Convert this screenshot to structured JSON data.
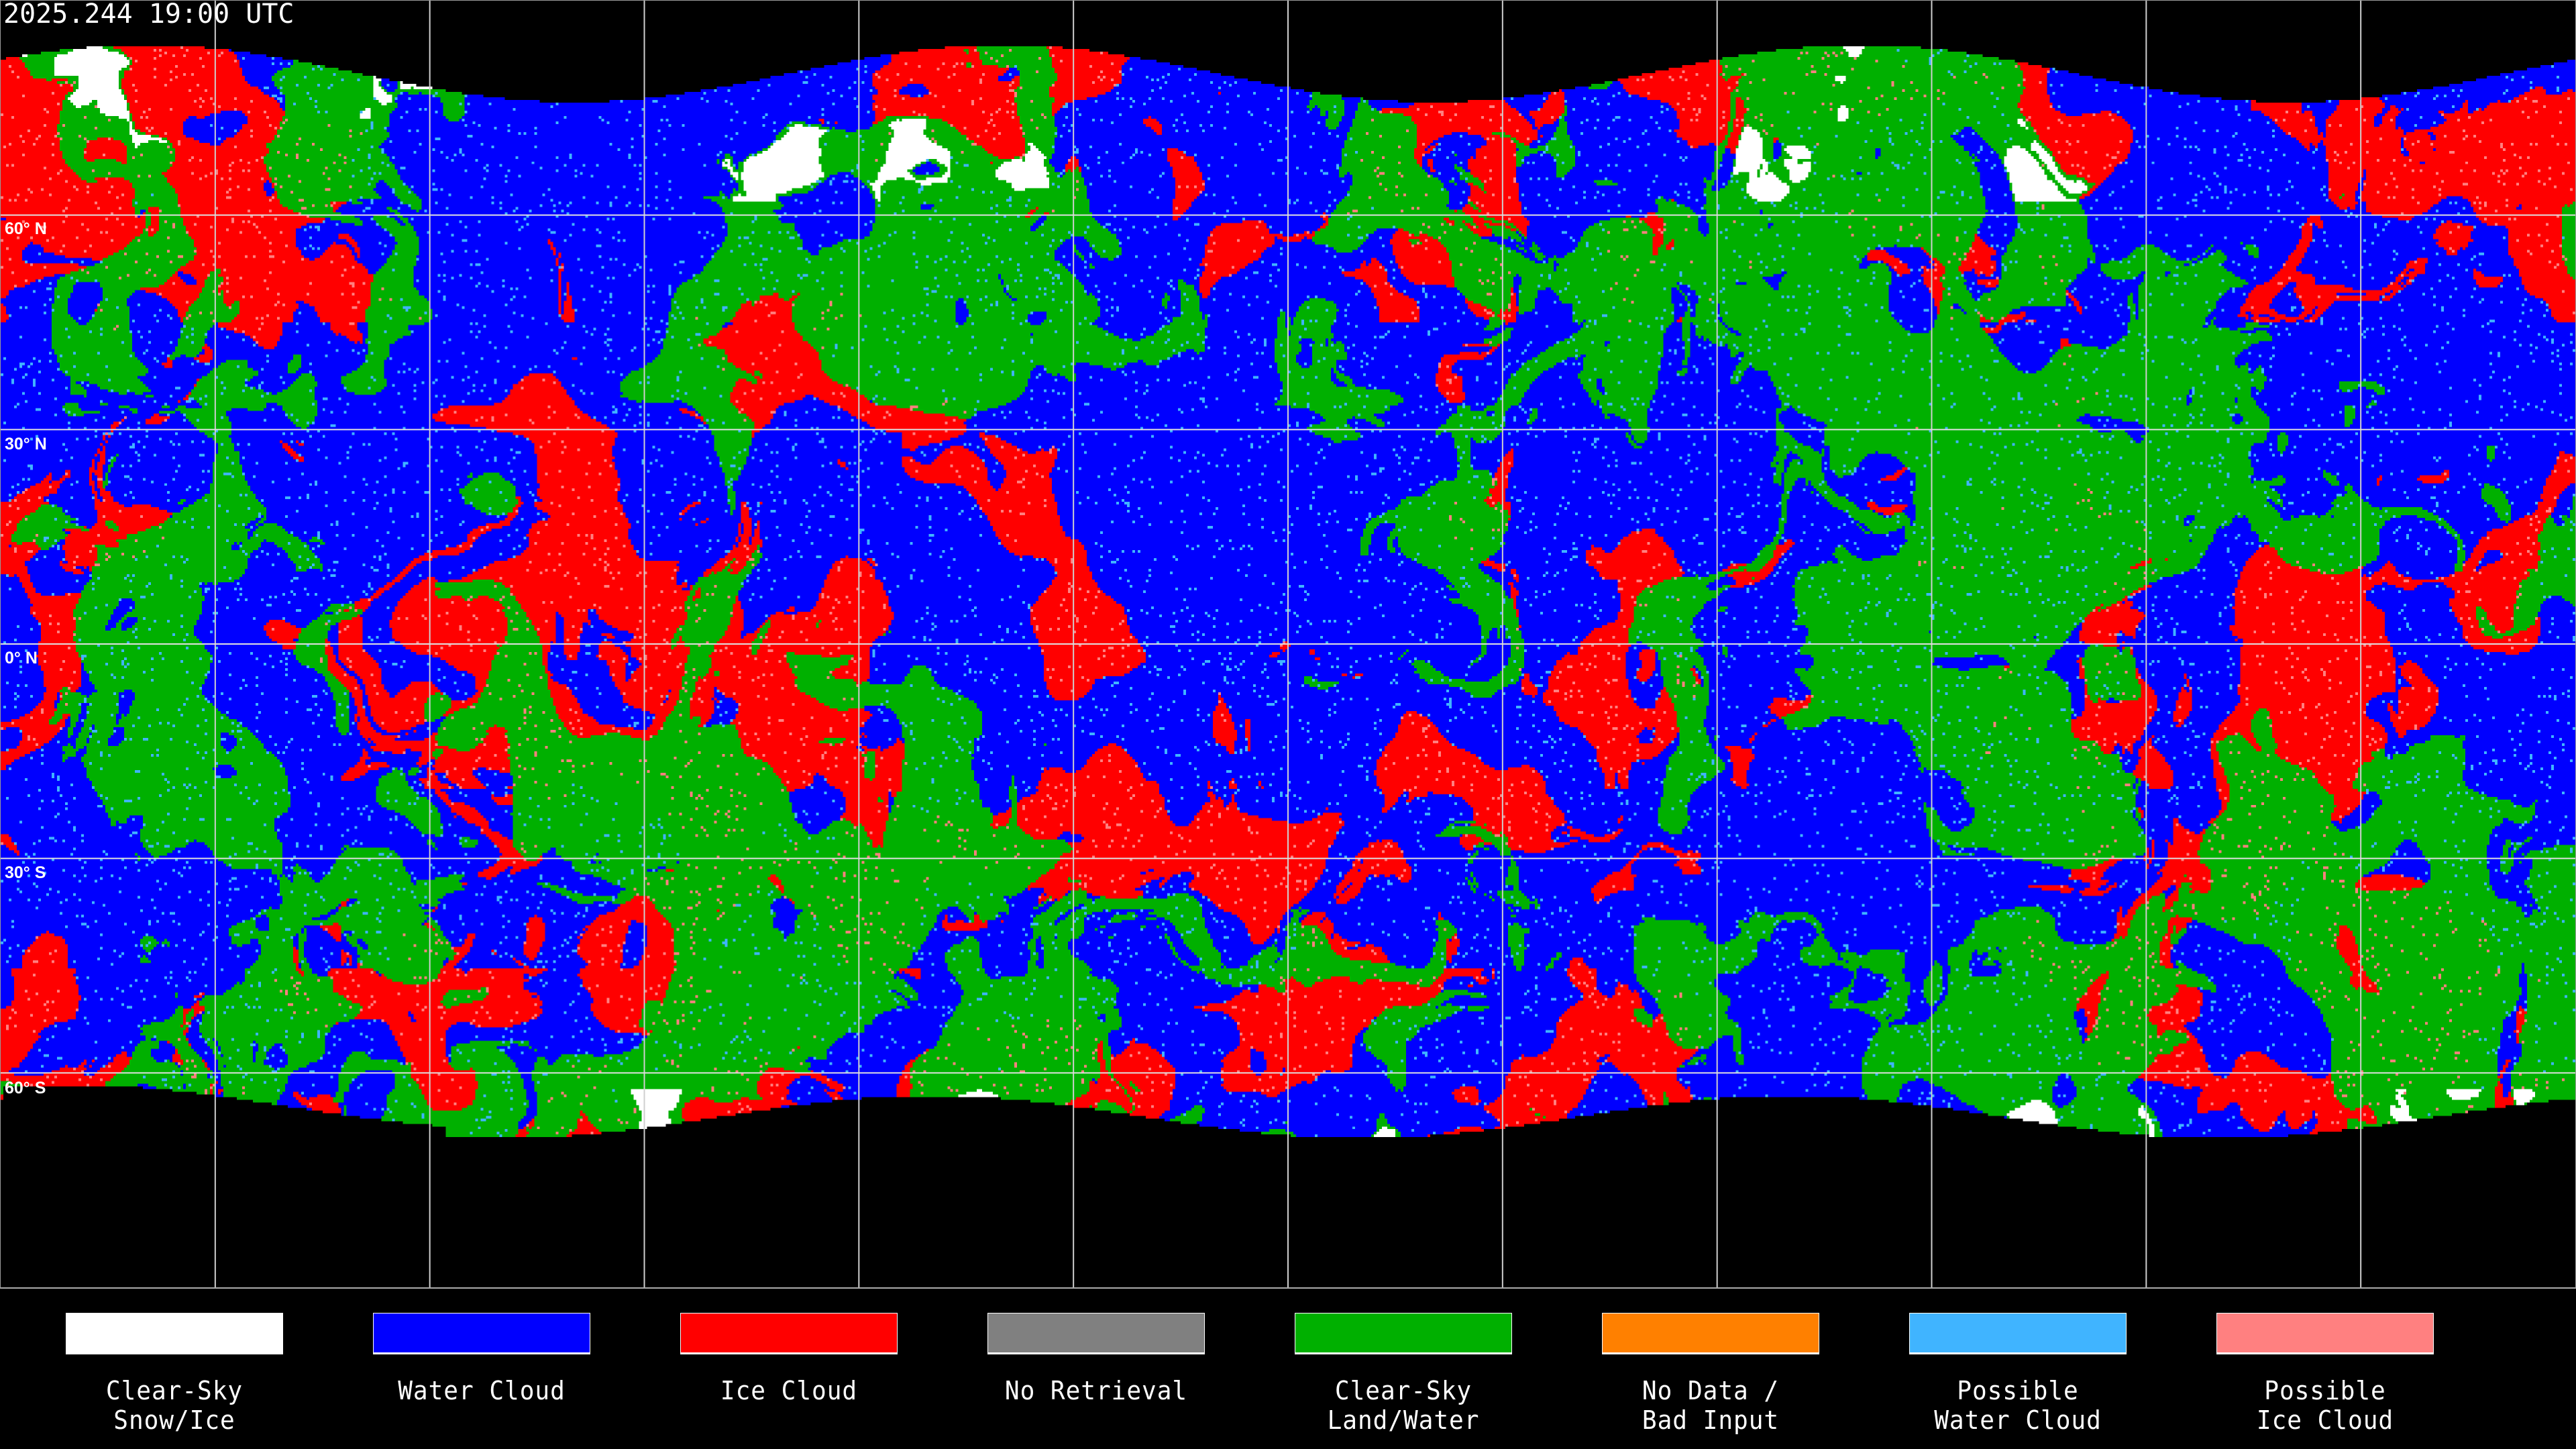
{
  "title": "2025.244 19:00 UTC",
  "map": {
    "projection": "equirectangular",
    "gridlines": true,
    "lat_labels": [
      "60° N",
      "30° N",
      "0° N",
      "30° S",
      "60° S"
    ]
  },
  "legend": [
    {
      "label": "Clear-Sky\nSnow/Ice",
      "color": "#ffffff"
    },
    {
      "label": "Water Cloud",
      "color": "#0000ff"
    },
    {
      "label": "Ice Cloud",
      "color": "#ff0000"
    },
    {
      "label": "No Retrieval",
      "color": "#808080"
    },
    {
      "label": "Clear-Sky\nLand/Water",
      "color": "#00b000"
    },
    {
      "label": "No Data /\nBad Input",
      "color": "#ff8000"
    },
    {
      "label": "Possible\nWater Cloud",
      "color": "#40b4ff"
    },
    {
      "label": "Possible\nIce Cloud",
      "color": "#ff8080"
    }
  ]
}
